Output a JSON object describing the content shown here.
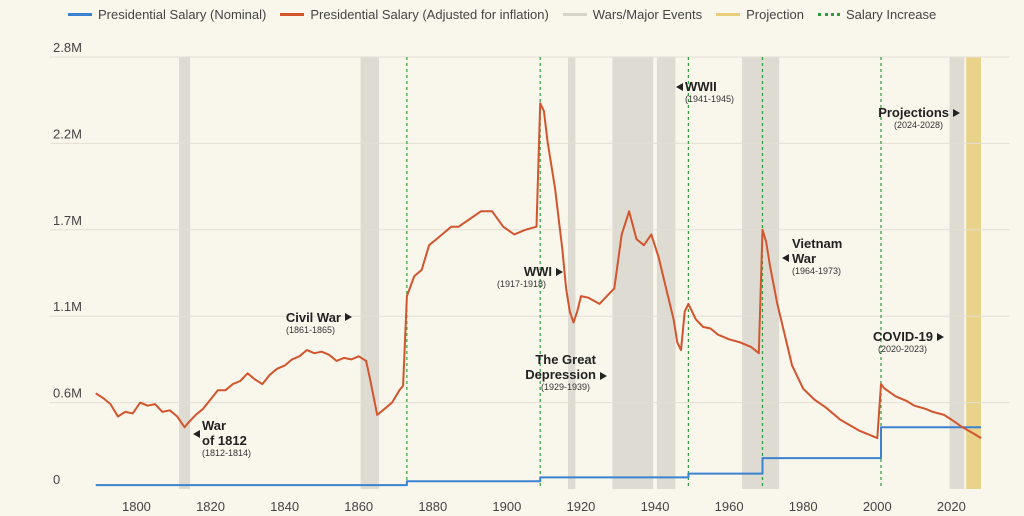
{
  "legend": [
    {
      "label": "Presidential Salary (Nominal)",
      "color": "#3b82d1",
      "kind": "line"
    },
    {
      "label": "Presidential Salary (Adjusted for inflation)",
      "color": "#d2552e",
      "kind": "line"
    },
    {
      "label": "Wars/Major Events",
      "color": "#d6d3cb",
      "kind": "bar"
    },
    {
      "label": "Projection",
      "color": "#e9cf7d",
      "kind": "bar"
    },
    {
      "label": "Salary Increase",
      "color": "#2f9e3a",
      "kind": "dotted"
    }
  ],
  "chart_data": {
    "type": "line",
    "title": "",
    "xlabel": "",
    "ylabel": "",
    "xlim": [
      1788,
      2028
    ],
    "ylim": [
      0,
      2800000
    ],
    "x_ticks": [
      1800,
      1820,
      1840,
      1860,
      1880,
      1900,
      1920,
      1940,
      1960,
      1980,
      2000,
      2020
    ],
    "y_ticks": [
      {
        "value": 0,
        "label": "0"
      },
      {
        "value": 560000,
        "label": "0.6M"
      },
      {
        "value": 1120000,
        "label": "1.1M"
      },
      {
        "value": 1680000,
        "label": "1.7M"
      },
      {
        "value": 2240000,
        "label": "2.2M"
      },
      {
        "value": 2800000,
        "label": "2.8M"
      }
    ],
    "grid": true,
    "legend_position": "top",
    "events": [
      {
        "name": [
          "War",
          "of 1812"
        ],
        "range": "(1812-1814)",
        "start": 1812,
        "end": 1814
      },
      {
        "name": [
          "Civil War"
        ],
        "range": "(1861-1865)",
        "start": 1861,
        "end": 1865
      },
      {
        "name": [
          "WWI"
        ],
        "range": "(1917-1918)",
        "start": 1917,
        "end": 1918
      },
      {
        "name": [
          "The Great",
          "Depression"
        ],
        "range": "(1929-1939)",
        "start": 1929,
        "end": 1939
      },
      {
        "name": [
          "WWII"
        ],
        "range": "(1941-1945)",
        "start": 1941,
        "end": 1945
      },
      {
        "name": [
          "Vietnam",
          "War"
        ],
        "range": "(1964-1973)",
        "start": 1964,
        "end": 1973
      },
      {
        "name": [
          "COVID-19"
        ],
        "range": "(2020-2023)",
        "start": 2020,
        "end": 2023
      }
    ],
    "projection": {
      "name": [
        "Projections"
      ],
      "range": "(2024-2028)",
      "start": 2024,
      "end": 2028
    },
    "salary_increases": [
      1873,
      1909,
      1949,
      1969,
      2001
    ],
    "series": [
      {
        "name": "Presidential Salary (Nominal)",
        "color": "#3b82d1",
        "x": [
          1789,
          1873,
          1873,
          1909,
          1909,
          1949,
          1949,
          1969,
          1969,
          2001,
          2001,
          2028
        ],
        "y": [
          25000,
          25000,
          50000,
          50000,
          75000,
          75000,
          100000,
          100000,
          200000,
          200000,
          400000,
          400000
        ]
      },
      {
        "name": "Presidential Salary (Adjusted for inflation)",
        "color": "#d2552e",
        "x": [
          1789,
          1791,
          1793,
          1795,
          1797,
          1799,
          1801,
          1803,
          1805,
          1807,
          1809,
          1811,
          1813,
          1814,
          1816,
          1818,
          1820,
          1822,
          1824,
          1826,
          1828,
          1830,
          1832,
          1834,
          1836,
          1838,
          1840,
          1842,
          1844,
          1846,
          1848,
          1850,
          1852,
          1854,
          1856,
          1858,
          1860,
          1862,
          1863,
          1865,
          1867,
          1869,
          1871,
          1872,
          1873,
          1875,
          1877,
          1879,
          1881,
          1883,
          1885,
          1887,
          1890,
          1893,
          1896,
          1899,
          1902,
          1905,
          1908,
          1909,
          1910,
          1911,
          1913,
          1915,
          1916,
          1917,
          1918,
          1919,
          1920,
          1922,
          1925,
          1927,
          1929,
          1931,
          1933,
          1935,
          1937,
          1939,
          1941,
          1943,
          1945,
          1946,
          1947,
          1948,
          1949,
          1950,
          1951,
          1953,
          1955,
          1957,
          1960,
          1963,
          1966,
          1968,
          1969,
          1970,
          1971,
          1973,
          1975,
          1977,
          1980,
          1983,
          1986,
          1990,
          1995,
          2000,
          2001,
          2002,
          2005,
          2008,
          2010,
          2013,
          2015,
          2018,
          2020,
          2023,
          2026,
          2028
        ],
        "y": [
          620000,
          590000,
          550000,
          470000,
          500000,
          490000,
          560000,
          540000,
          550000,
          500000,
          510000,
          470000,
          400000,
          430000,
          480000,
          520000,
          580000,
          640000,
          640000,
          680000,
          700000,
          750000,
          710000,
          680000,
          740000,
          780000,
          800000,
          840000,
          860000,
          900000,
          880000,
          890000,
          870000,
          830000,
          850000,
          840000,
          860000,
          830000,
          720000,
          480000,
          520000,
          560000,
          640000,
          670000,
          1250000,
          1380000,
          1420000,
          1580000,
          1620000,
          1660000,
          1700000,
          1700000,
          1750000,
          1800000,
          1800000,
          1700000,
          1650000,
          1680000,
          1700000,
          2500000,
          2450000,
          2250000,
          1950000,
          1550000,
          1300000,
          1150000,
          1080000,
          1150000,
          1250000,
          1240000,
          1200000,
          1250000,
          1300000,
          1650000,
          1800000,
          1620000,
          1580000,
          1650000,
          1500000,
          1300000,
          1100000,
          950000,
          900000,
          1150000,
          1200000,
          1150000,
          1100000,
          1050000,
          1040000,
          1000000,
          970000,
          950000,
          920000,
          880000,
          1680000,
          1600000,
          1450000,
          1200000,
          1000000,
          800000,
          650000,
          580000,
          530000,
          450000,
          380000,
          330000,
          680000,
          650000,
          600000,
          570000,
          540000,
          520000,
          500000,
          480000,
          450000,
          400000,
          360000,
          330000
        ]
      }
    ]
  }
}
